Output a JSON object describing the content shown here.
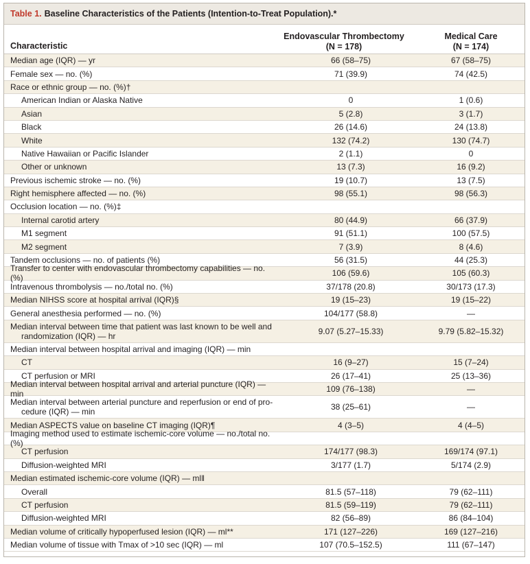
{
  "table": {
    "label": "Table 1.",
    "title": "Baseline Characteristics of the Patients (Intention-to-Treat Population).*",
    "header": {
      "characteristic": "Characteristic",
      "group1_name": "Endovascular Thrombectomy",
      "group1_n": "(N = 178)",
      "group2_name": "Medical Care",
      "group2_n": "(N = 174)"
    },
    "rows": [
      {
        "label": "Median age (IQR) — yr",
        "v1": "66 (58–75)",
        "v2": "67 (58–75)",
        "sub": false,
        "shade": true
      },
      {
        "label": "Female sex — no. (%)",
        "v1": "71 (39.9)",
        "v2": "74 (42.5)",
        "sub": false,
        "shade": false
      },
      {
        "label": "Race or ethnic group — no. (%)†",
        "v1": "",
        "v2": "",
        "sub": false,
        "shade": true
      },
      {
        "label": "American Indian or Alaska Native",
        "v1": "0",
        "v2": "1 (0.6)",
        "sub": true,
        "shade": false
      },
      {
        "label": "Asian",
        "v1": "5 (2.8)",
        "v2": "3 (1.7)",
        "sub": true,
        "shade": true
      },
      {
        "label": "Black",
        "v1": "26 (14.6)",
        "v2": "24 (13.8)",
        "sub": true,
        "shade": false
      },
      {
        "label": "White",
        "v1": "132 (74.2)",
        "v2": "130 (74.7)",
        "sub": true,
        "shade": true
      },
      {
        "label": "Native Hawaiian or Pacific Islander",
        "v1": "2 (1.1)",
        "v2": "0",
        "sub": true,
        "shade": false
      },
      {
        "label": "Other or unknown",
        "v1": "13 (7.3)",
        "v2": "16 (9.2)",
        "sub": true,
        "shade": true
      },
      {
        "label": "Previous ischemic stroke — no. (%)",
        "v1": "19 (10.7)",
        "v2": "13 (7.5)",
        "sub": false,
        "shade": false
      },
      {
        "label": "Right hemisphere affected — no. (%)",
        "v1": "98 (55.1)",
        "v2": "98 (56.3)",
        "sub": false,
        "shade": true
      },
      {
        "label": "Occlusion location — no. (%)‡",
        "v1": "",
        "v2": "",
        "sub": false,
        "shade": false
      },
      {
        "label": "Internal carotid artery",
        "v1": "80 (44.9)",
        "v2": "66 (37.9)",
        "sub": true,
        "shade": true
      },
      {
        "label": "M1 segment",
        "v1": "91 (51.1)",
        "v2": "100 (57.5)",
        "sub": true,
        "shade": false
      },
      {
        "label": "M2 segment",
        "v1": "7 (3.9)",
        "v2": "8 (4.6)",
        "sub": true,
        "shade": true
      },
      {
        "label": "Tandem occlusions — no. of patients (%)",
        "v1": "56 (31.5)",
        "v2": "44 (25.3)",
        "sub": false,
        "shade": false
      },
      {
        "label": "Transfer to center with endovascular thrombectomy capabilities — no. (%)",
        "v1": "106 (59.6)",
        "v2": "105 (60.3)",
        "sub": false,
        "shade": true
      },
      {
        "label": "Intravenous thrombolysis — no./total no. (%)",
        "v1": "37/178 (20.8)",
        "v2": "30/173 (17.3)",
        "sub": false,
        "shade": false
      },
      {
        "label": "Median NIHSS score at hospital arrival (IQR)§",
        "v1": "19 (15–23)",
        "v2": "19 (15–22)",
        "sub": false,
        "shade": true
      },
      {
        "label": "General anesthesia performed — no. (%)",
        "v1": "104/177 (58.8)",
        "v2": "—",
        "sub": false,
        "shade": false
      },
      {
        "label": "Median interval between time that patient was last known to be well and",
        "label2": "randomization (IQR) — hr",
        "v1": "9.07 (5.27–15.33)",
        "v2": "9.79 (5.82–15.32)",
        "sub": false,
        "shade": true
      },
      {
        "label": "Median interval between hospital arrival and imaging (IQR) — min",
        "v1": "",
        "v2": "",
        "sub": false,
        "shade": false
      },
      {
        "label": "CT",
        "v1": "16 (9–27)",
        "v2": "15 (7–24)",
        "sub": true,
        "shade": true
      },
      {
        "label": "CT perfusion or MRI",
        "v1": "26 (17–41)",
        "v2": "25 (13–36)",
        "sub": true,
        "shade": false
      },
      {
        "label": "Median interval between hospital arrival and arterial puncture (IQR) — min",
        "v1": "109 (76–138)",
        "v2": "—",
        "sub": false,
        "shade": true
      },
      {
        "label": "Median interval between arterial puncture and reperfusion or end of pro-",
        "label2": "cedure (IQR) — min",
        "v1": "38 (25–61)",
        "v2": "—",
        "sub": false,
        "shade": false
      },
      {
        "label": "Median ASPECTS value on baseline CT imaging (IQR)¶",
        "v1": "4 (3–5)",
        "v2": "4 (4–5)",
        "sub": false,
        "shade": true
      },
      {
        "label": "Imaging method used to estimate ischemic-core volume — no./total no. (%)",
        "v1": "",
        "v2": "",
        "sub": false,
        "shade": false
      },
      {
        "label": "CT perfusion",
        "v1": "174/177 (98.3)",
        "v2": "169/174 (97.1)",
        "sub": true,
        "shade": true
      },
      {
        "label": "Diffusion-weighted MRI",
        "v1": "3/177 (1.7)",
        "v2": "5/174 (2.9)",
        "sub": true,
        "shade": false
      },
      {
        "label": "Median estimated ischemic-core volume (IQR) — ml‖",
        "v1": "",
        "v2": "",
        "sub": false,
        "shade": true
      },
      {
        "label": "Overall",
        "v1": "81.5 (57–118)",
        "v2": "79 (62–111)",
        "sub": true,
        "shade": false
      },
      {
        "label": "CT perfusion",
        "v1": "81.5 (59–119)",
        "v2": "79 (62–111)",
        "sub": true,
        "shade": true
      },
      {
        "label": "Diffusion-weighted MRI",
        "v1": "82 (56–89)",
        "v2": "86 (84–104)",
        "sub": true,
        "shade": false
      },
      {
        "label": "Median volume of critically hypoperfused lesion (IQR) — ml**",
        "v1": "171 (127–226)",
        "v2": "169 (127–216)",
        "sub": false,
        "shade": true
      },
      {
        "label": "Median volume of tissue with Tmax of >10 sec (IQR) — ml",
        "v1": "107 (70.5–152.5)",
        "v2": "111 (67–147)",
        "sub": false,
        "shade": false
      }
    ]
  }
}
